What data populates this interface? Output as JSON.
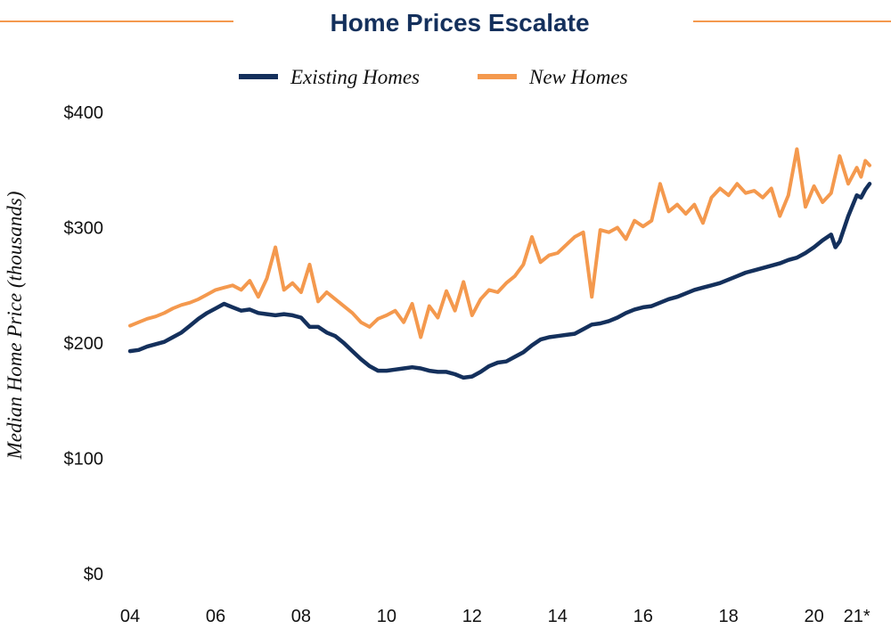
{
  "chart_data": {
    "type": "line",
    "title": "Home Prices Escalate",
    "ylabel": "Median Home Price (thousands)",
    "xlabel": "",
    "ylim": [
      0,
      400
    ],
    "xlim": [
      2004,
      2021.3
    ],
    "y_ticks": [
      {
        "value": 0,
        "label": "$0"
      },
      {
        "value": 100,
        "label": "$100"
      },
      {
        "value": 200,
        "label": "$200"
      },
      {
        "value": 300,
        "label": "$300"
      },
      {
        "value": 400,
        "label": "$400"
      }
    ],
    "x_ticks": [
      {
        "value": 2004,
        "label": "04"
      },
      {
        "value": 2006,
        "label": "06"
      },
      {
        "value": 2008,
        "label": "08"
      },
      {
        "value": 2010,
        "label": "10"
      },
      {
        "value": 2012,
        "label": "12"
      },
      {
        "value": 2014,
        "label": "14"
      },
      {
        "value": 2016,
        "label": "16"
      },
      {
        "value": 2018,
        "label": "18"
      },
      {
        "value": 2020,
        "label": "20"
      },
      {
        "value": 2021,
        "label": "21*"
      }
    ],
    "grid": false,
    "legend_position": "top-center",
    "series": [
      {
        "name": "Existing Homes",
        "color": "#14305c",
        "points": [
          [
            2004.0,
            193
          ],
          [
            2004.2,
            194
          ],
          [
            2004.4,
            197
          ],
          [
            2004.6,
            199
          ],
          [
            2004.8,
            201
          ],
          [
            2005.0,
            205
          ],
          [
            2005.2,
            209
          ],
          [
            2005.4,
            215
          ],
          [
            2005.6,
            221
          ],
          [
            2005.8,
            226
          ],
          [
            2006.0,
            230
          ],
          [
            2006.2,
            234
          ],
          [
            2006.4,
            231
          ],
          [
            2006.6,
            228
          ],
          [
            2006.8,
            229
          ],
          [
            2007.0,
            226
          ],
          [
            2007.2,
            225
          ],
          [
            2007.4,
            224
          ],
          [
            2007.6,
            225
          ],
          [
            2007.8,
            224
          ],
          [
            2008.0,
            222
          ],
          [
            2008.2,
            214
          ],
          [
            2008.4,
            214
          ],
          [
            2008.6,
            209
          ],
          [
            2008.8,
            206
          ],
          [
            2009.0,
            200
          ],
          [
            2009.2,
            193
          ],
          [
            2009.4,
            186
          ],
          [
            2009.6,
            180
          ],
          [
            2009.8,
            176
          ],
          [
            2010.0,
            176
          ],
          [
            2010.2,
            177
          ],
          [
            2010.4,
            178
          ],
          [
            2010.6,
            179
          ],
          [
            2010.8,
            178
          ],
          [
            2011.0,
            176
          ],
          [
            2011.2,
            175
          ],
          [
            2011.4,
            175
          ],
          [
            2011.6,
            173
          ],
          [
            2011.8,
            170
          ],
          [
            2012.0,
            171
          ],
          [
            2012.2,
            175
          ],
          [
            2012.4,
            180
          ],
          [
            2012.6,
            183
          ],
          [
            2012.8,
            184
          ],
          [
            2013.0,
            188
          ],
          [
            2013.2,
            192
          ],
          [
            2013.4,
            198
          ],
          [
            2013.6,
            203
          ],
          [
            2013.8,
            205
          ],
          [
            2014.0,
            206
          ],
          [
            2014.2,
            207
          ],
          [
            2014.4,
            208
          ],
          [
            2014.6,
            212
          ],
          [
            2014.8,
            216
          ],
          [
            2015.0,
            217
          ],
          [
            2015.2,
            219
          ],
          [
            2015.4,
            222
          ],
          [
            2015.6,
            226
          ],
          [
            2015.8,
            229
          ],
          [
            2016.0,
            231
          ],
          [
            2016.2,
            232
          ],
          [
            2016.4,
            235
          ],
          [
            2016.6,
            238
          ],
          [
            2016.8,
            240
          ],
          [
            2017.0,
            243
          ],
          [
            2017.2,
            246
          ],
          [
            2017.4,
            248
          ],
          [
            2017.6,
            250
          ],
          [
            2017.8,
            252
          ],
          [
            2018.0,
            255
          ],
          [
            2018.2,
            258
          ],
          [
            2018.4,
            261
          ],
          [
            2018.6,
            263
          ],
          [
            2018.8,
            265
          ],
          [
            2019.0,
            267
          ],
          [
            2019.2,
            269
          ],
          [
            2019.4,
            272
          ],
          [
            2019.6,
            274
          ],
          [
            2019.8,
            278
          ],
          [
            2020.0,
            283
          ],
          [
            2020.2,
            289
          ],
          [
            2020.4,
            294
          ],
          [
            2020.5,
            283
          ],
          [
            2020.6,
            288
          ],
          [
            2020.8,
            310
          ],
          [
            2021.0,
            328
          ],
          [
            2021.1,
            326
          ],
          [
            2021.2,
            333
          ],
          [
            2021.3,
            338
          ]
        ]
      },
      {
        "name": "New Homes",
        "color": "#f4994e",
        "points": [
          [
            2004.0,
            215
          ],
          [
            2004.2,
            218
          ],
          [
            2004.4,
            221
          ],
          [
            2004.6,
            223
          ],
          [
            2004.8,
            226
          ],
          [
            2005.0,
            230
          ],
          [
            2005.2,
            233
          ],
          [
            2005.4,
            235
          ],
          [
            2005.6,
            238
          ],
          [
            2005.8,
            242
          ],
          [
            2006.0,
            246
          ],
          [
            2006.2,
            248
          ],
          [
            2006.4,
            250
          ],
          [
            2006.6,
            246
          ],
          [
            2006.8,
            254
          ],
          [
            2007.0,
            240
          ],
          [
            2007.2,
            256
          ],
          [
            2007.4,
            283
          ],
          [
            2007.6,
            246
          ],
          [
            2007.8,
            252
          ],
          [
            2008.0,
            244
          ],
          [
            2008.2,
            268
          ],
          [
            2008.4,
            236
          ],
          [
            2008.6,
            244
          ],
          [
            2008.8,
            238
          ],
          [
            2009.0,
            232
          ],
          [
            2009.2,
            226
          ],
          [
            2009.4,
            218
          ],
          [
            2009.6,
            214
          ],
          [
            2009.8,
            221
          ],
          [
            2010.0,
            224
          ],
          [
            2010.2,
            228
          ],
          [
            2010.4,
            218
          ],
          [
            2010.6,
            234
          ],
          [
            2010.8,
            205
          ],
          [
            2011.0,
            232
          ],
          [
            2011.2,
            222
          ],
          [
            2011.4,
            245
          ],
          [
            2011.6,
            228
          ],
          [
            2011.8,
            253
          ],
          [
            2012.0,
            224
          ],
          [
            2012.2,
            238
          ],
          [
            2012.4,
            246
          ],
          [
            2012.6,
            244
          ],
          [
            2012.8,
            252
          ],
          [
            2013.0,
            258
          ],
          [
            2013.2,
            268
          ],
          [
            2013.4,
            292
          ],
          [
            2013.6,
            270
          ],
          [
            2013.8,
            276
          ],
          [
            2014.0,
            278
          ],
          [
            2014.2,
            285
          ],
          [
            2014.4,
            292
          ],
          [
            2014.6,
            296
          ],
          [
            2014.8,
            240
          ],
          [
            2015.0,
            298
          ],
          [
            2015.2,
            296
          ],
          [
            2015.4,
            300
          ],
          [
            2015.6,
            290
          ],
          [
            2015.8,
            306
          ],
          [
            2016.0,
            301
          ],
          [
            2016.2,
            306
          ],
          [
            2016.4,
            338
          ],
          [
            2016.6,
            314
          ],
          [
            2016.8,
            320
          ],
          [
            2017.0,
            312
          ],
          [
            2017.2,
            320
          ],
          [
            2017.4,
            304
          ],
          [
            2017.6,
            326
          ],
          [
            2017.8,
            334
          ],
          [
            2018.0,
            328
          ],
          [
            2018.2,
            338
          ],
          [
            2018.4,
            330
          ],
          [
            2018.6,
            332
          ],
          [
            2018.8,
            326
          ],
          [
            2019.0,
            334
          ],
          [
            2019.2,
            310
          ],
          [
            2019.4,
            328
          ],
          [
            2019.6,
            368
          ],
          [
            2019.8,
            318
          ],
          [
            2020.0,
            336
          ],
          [
            2020.2,
            322
          ],
          [
            2020.4,
            330
          ],
          [
            2020.6,
            362
          ],
          [
            2020.8,
            338
          ],
          [
            2021.0,
            352
          ],
          [
            2021.1,
            344
          ],
          [
            2021.2,
            358
          ],
          [
            2021.3,
            354
          ]
        ]
      }
    ]
  },
  "colors": {
    "navy": "#14305c",
    "orange": "#f4994e",
    "text": "#111111"
  }
}
